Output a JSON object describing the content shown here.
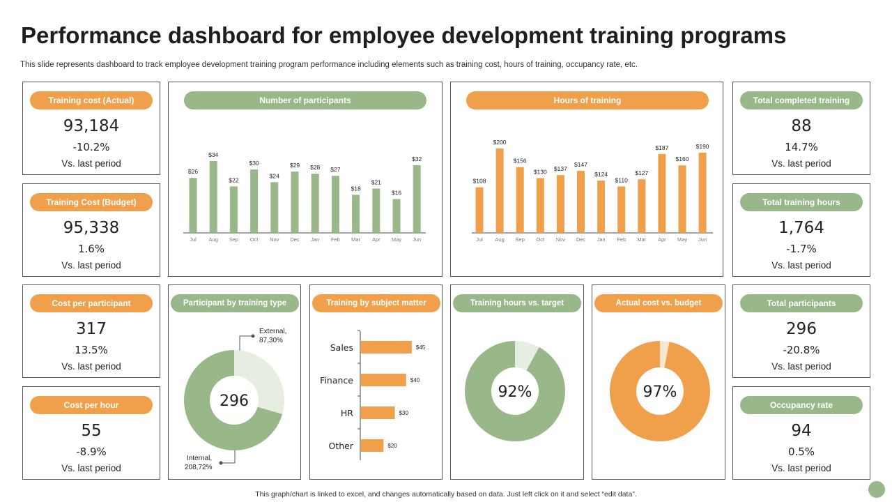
{
  "title": "Performance dashboard for employee development training programs",
  "subtitle": "This slide represents dashboard to track employee development training program performance including elements such as training cost, hours of training, occupancy rate,  etc.",
  "colors": {
    "orange": "#F0A04B",
    "green": "#98B88A",
    "light_green": "#E6EEE2",
    "light_orange": "#FBE6CF"
  },
  "kpis_left": [
    {
      "label": "Training cost (Actual)",
      "value": "93,184",
      "change": "-10.2%",
      "note": "Vs. last period",
      "color": "orange"
    },
    {
      "label": "Training Cost (Budget)",
      "value": "95,338",
      "change": "1.6%",
      "note": "Vs. last period",
      "color": "orange"
    },
    {
      "label": "Cost per participant",
      "value": "317",
      "change": "13.5%",
      "note": "Vs. last period",
      "color": "orange"
    },
    {
      "label": "Cost per hour",
      "value": "55",
      "change": "-8.9%",
      "note": "Vs. last period",
      "color": "orange"
    }
  ],
  "kpis_right": [
    {
      "label": "Total completed training",
      "value": "88",
      "change": "14.7%",
      "note": "Vs. last period",
      "color": "green"
    },
    {
      "label": "Total training hours",
      "value": "1,764",
      "change": "-1.7%",
      "note": "Vs. last period",
      "color": "green"
    },
    {
      "label": "Total participants",
      "value": "296",
      "change": "-20.8%",
      "note": "Vs. last period",
      "color": "green"
    },
    {
      "label": "Occupancy  rate",
      "value": "94",
      "change": "0.5%",
      "note": "Vs. last period",
      "color": "green"
    }
  ],
  "chart_data": [
    {
      "type": "bar",
      "title": "Number of participants",
      "categories": [
        "Jul",
        "Aug",
        "Sep",
        "Oct",
        "Nov",
        "Dec",
        "Jan",
        "Feb",
        "Mar",
        "Apr",
        "May",
        "Jun"
      ],
      "values": [
        26,
        34,
        22,
        30,
        24,
        29,
        28,
        27,
        18,
        21,
        16,
        32
      ],
      "labels": [
        "$26",
        "$34",
        "$22",
        "$30",
        "$24",
        "$29",
        "$28",
        "$27",
        "$18",
        "$21",
        "$16",
        "$32"
      ],
      "ylim": [
        0,
        34
      ]
    },
    {
      "type": "bar",
      "title": "Hours of training",
      "categories": [
        "Jul",
        "Aug",
        "Sep",
        "Oct",
        "Nov",
        "Dec",
        "Jan",
        "Feb",
        "Mar",
        "Apr",
        "May",
        "Jun"
      ],
      "values": [
        108,
        200,
        156,
        130,
        137,
        147,
        124,
        110,
        127,
        187,
        160,
        190
      ],
      "labels": [
        "$108",
        "$200",
        "$156",
        "$130",
        "$137",
        "$147",
        "$124",
        "$110",
        "$127",
        "$187",
        "$160",
        "$190"
      ],
      "ylim": [
        0,
        200
      ]
    },
    {
      "type": "pie",
      "title": "Participant  by training type",
      "center": "296",
      "slices": [
        {
          "name": "External",
          "value": 87.3,
          "label": "External,",
          "label2": "87,30%"
        },
        {
          "name": "Internal",
          "value": 208.72,
          "label": "Internal,",
          "label2": "208,72%"
        }
      ]
    },
    {
      "type": "bar",
      "orientation": "horizontal",
      "title": "Training by subject matter",
      "categories": [
        "Sales",
        "Finance",
        "HR",
        "Other"
      ],
      "values": [
        45,
        40,
        30,
        20
      ],
      "labels": [
        "$45",
        "$40",
        "$30",
        "$20"
      ]
    },
    {
      "type": "pie",
      "title": "Training hours vs. target",
      "value": 92,
      "center": "92%"
    },
    {
      "type": "pie",
      "title": "Actual cost vs. budget",
      "value": 97,
      "center": "97%"
    }
  ],
  "footer": "This graph/chart is linked to excel, and changes automatically based on data. Just left click on it and select “edit data”."
}
